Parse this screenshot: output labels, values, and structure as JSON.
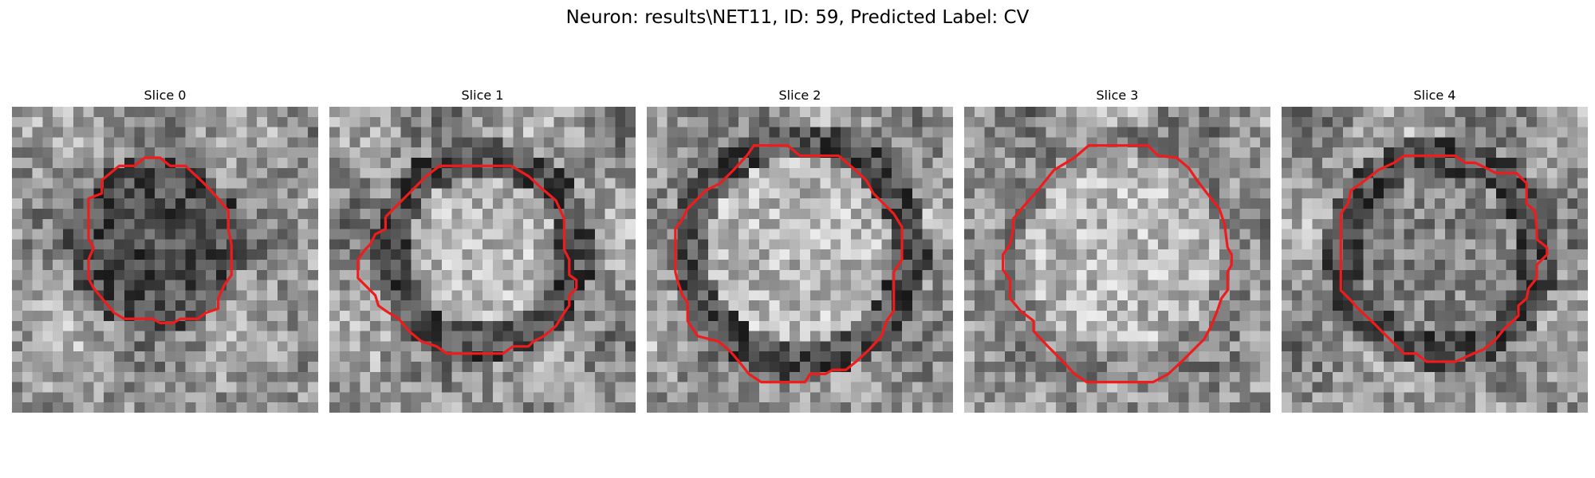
{
  "figure": {
    "title": "Neuron: results\\NET11, ID: 59, Predicted Label: CV"
  },
  "panels": [
    {
      "title": "Slice 0",
      "seed": 11,
      "blob_cx": 0.47,
      "blob_cy": 0.45,
      "blob_r": 0.24,
      "inner": "dark",
      "ring": "dark"
    },
    {
      "title": "Slice 1",
      "seed": 23,
      "blob_cx": 0.5,
      "blob_cy": 0.47,
      "blob_r": 0.31,
      "inner": "light",
      "ring": "dark"
    },
    {
      "title": "Slice 2",
      "seed": 37,
      "blob_cx": 0.5,
      "blob_cy": 0.47,
      "blob_r": 0.37,
      "inner": "light",
      "ring": "dark"
    },
    {
      "title": "Slice 3",
      "seed": 41,
      "blob_cx": 0.52,
      "blob_cy": 0.48,
      "blob_r": 0.38,
      "inner": "light",
      "ring": "mid"
    },
    {
      "title": "Slice 4",
      "seed": 53,
      "blob_cx": 0.52,
      "blob_cy": 0.48,
      "blob_r": 0.33,
      "inner": "mid",
      "ring": "dark"
    }
  ],
  "colors": {
    "contour": "#ee1c1c",
    "background": "#ffffff"
  }
}
